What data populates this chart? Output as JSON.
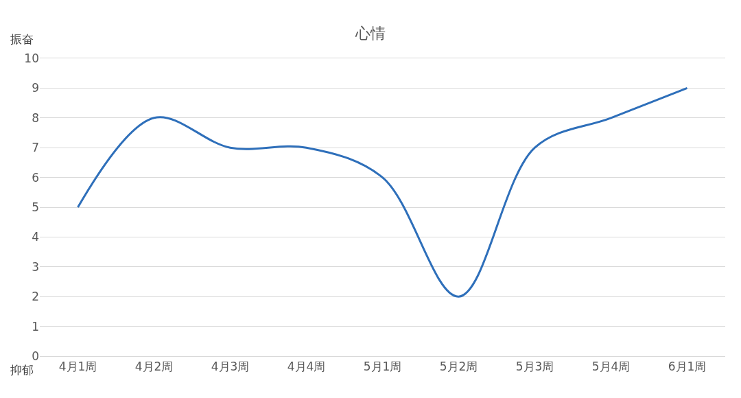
{
  "chart_data": {
    "type": "line",
    "title": "心情",
    "categories": [
      "4月1周",
      "4月2周",
      "4月3周",
      "4月4周",
      "5月1周",
      "5月2周",
      "5月3周",
      "5月4周",
      "6月1周"
    ],
    "series": [
      {
        "color": "#2e6fba",
        "values": [
          5,
          8,
          7,
          7,
          6,
          2,
          7,
          8,
          9
        ]
      }
    ],
    "ylim": [
      0,
      10
    ],
    "yticks": [
      0,
      1,
      2,
      3,
      4,
      5,
      6,
      7,
      8,
      9,
      10
    ],
    "grid": "y",
    "marker": "none",
    "line_style": "solid",
    "annotations": [
      "振奋",
      "抑郁"
    ]
  }
}
